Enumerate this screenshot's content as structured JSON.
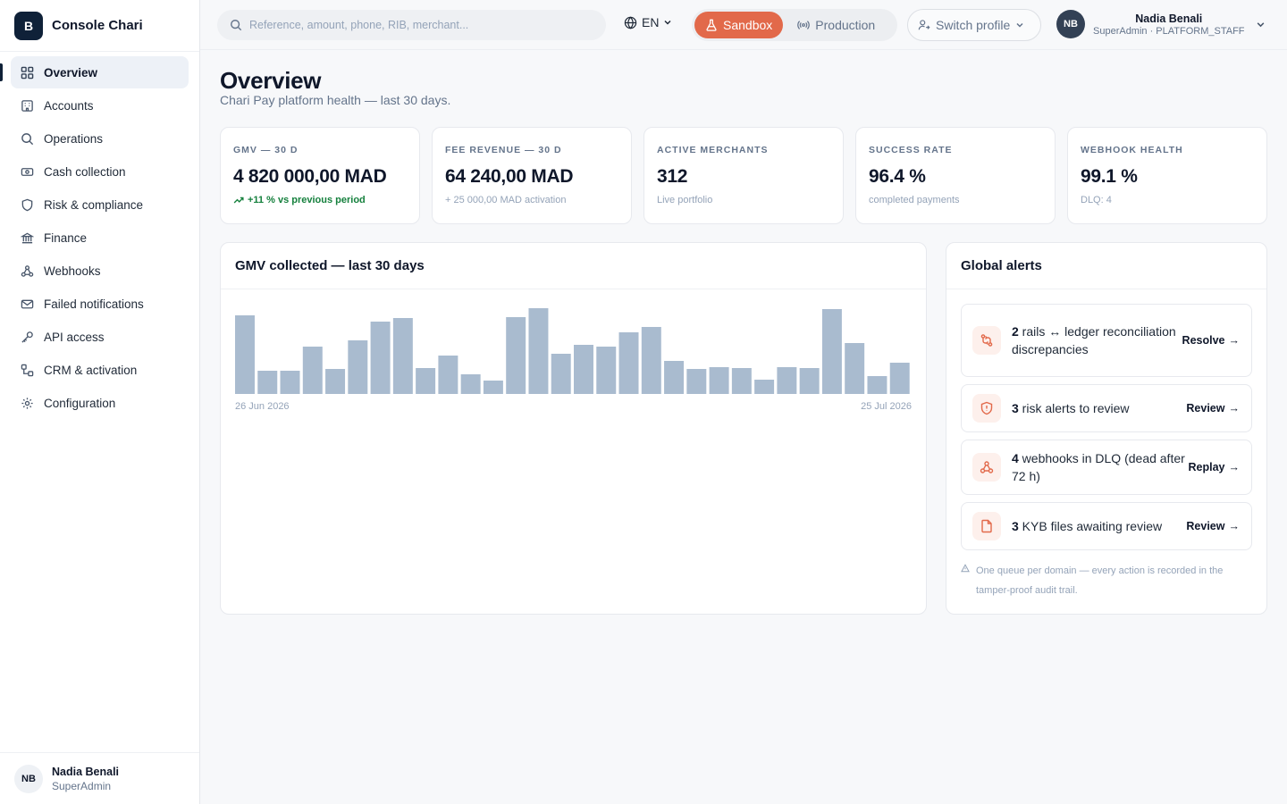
{
  "brand": {
    "logo_letter": "B",
    "name": "Console Chari"
  },
  "sidebar": {
    "items": [
      {
        "label": "Overview",
        "icon": "grid-icon"
      },
      {
        "label": "Accounts",
        "icon": "building-icon"
      },
      {
        "label": "Operations",
        "icon": "search-icon"
      },
      {
        "label": "Cash collection",
        "icon": "banknote-icon"
      },
      {
        "label": "Risk & compliance",
        "icon": "shield-icon"
      },
      {
        "label": "Finance",
        "icon": "bank-icon"
      },
      {
        "label": "Webhooks",
        "icon": "webhook-icon"
      },
      {
        "label": "Failed notifications",
        "icon": "mail-icon"
      },
      {
        "label": "API access",
        "icon": "key-icon"
      },
      {
        "label": "CRM & activation",
        "icon": "workflow-icon"
      },
      {
        "label": "Configuration",
        "icon": "gear-icon"
      }
    ],
    "active_index": 0,
    "user": {
      "initials": "NB",
      "name": "Nadia Benali",
      "role": "SuperAdmin"
    }
  },
  "topbar": {
    "search_placeholder": "Reference, amount, phone, RIB, merchant...",
    "language": "EN",
    "env": {
      "sandbox": "Sandbox",
      "production": "Production",
      "active": "Sandbox"
    },
    "switch_profile": "Switch profile",
    "user": {
      "initials": "NB",
      "name": "Nadia Benali",
      "role": "SuperAdmin · PLATFORM_STAFF"
    }
  },
  "header": {
    "title": "Overview",
    "subtitle": "Chari Pay platform health — last 30 days."
  },
  "kpis": [
    {
      "label": "GMV — 30 D",
      "value": "4 820 000,00 MAD",
      "sub": "+11 % vs previous period",
      "trend": true
    },
    {
      "label": "FEE REVENUE — 30 D",
      "value": "64 240,00 MAD",
      "sub": "+ 25 000,00 MAD activation",
      "trend": false
    },
    {
      "label": "ACTIVE MERCHANTS",
      "value": "312",
      "sub": "Live portfolio",
      "trend": false
    },
    {
      "label": "SUCCESS RATE",
      "value": "96.4 %",
      "sub": "completed payments",
      "trend": false
    },
    {
      "label": "WEBHOOK HEALTH",
      "value": "99.1 %",
      "sub": "DLQ: 4",
      "trend": false
    }
  ],
  "chart_card": {
    "title": "GMV collected — last 30 days"
  },
  "chart_data": {
    "type": "bar",
    "title": "GMV collected — last 30 days",
    "x_start_label": "26 Jun 2026",
    "x_end_label": "25 Jul 2026",
    "values": [
      88,
      26,
      26,
      53,
      28,
      60,
      81,
      85,
      29,
      43,
      22,
      15,
      86,
      96,
      45,
      55,
      53,
      69,
      75,
      37,
      28,
      30,
      29,
      16,
      30,
      29,
      95,
      57,
      20,
      35
    ],
    "ylim": [
      0,
      100
    ],
    "grid": false,
    "color": "#a9bbcf"
  },
  "alerts": {
    "title": "Global alerts",
    "items": [
      {
        "count": "2",
        "text": " rails ↔ ledger reconciliation discrepancies",
        "action": "Resolve",
        "icon": "git-compare-icon"
      },
      {
        "count": "3",
        "text": " risk alerts to review",
        "action": "Review",
        "icon": "shield-alert-icon"
      },
      {
        "count": "4",
        "text": " webhooks in DLQ (dead after 72 h)",
        "action": "Replay",
        "icon": "webhook-icon"
      },
      {
        "count": "3",
        "text": " KYB files awaiting review",
        "action": "Review",
        "icon": "file-icon"
      }
    ],
    "note": "One queue per domain — every action is recorded in the tamper-proof audit trail.",
    "accent": "#e2694a"
  }
}
